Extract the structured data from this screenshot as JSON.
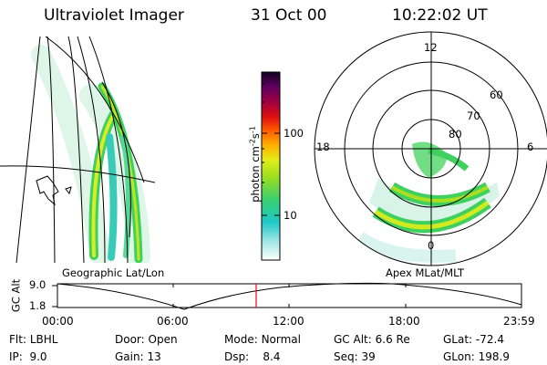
{
  "header": {
    "instrument": "Ultraviolet Imager",
    "date": "31 Oct 00",
    "time": "10:22:02 UT"
  },
  "colorbar": {
    "label": "photon cm",
    "label_sup1": "-2",
    "label_s": "s",
    "label_sup2": "-1",
    "ticks": [
      "100",
      "10"
    ]
  },
  "panels": {
    "geo_label": "Geographic Lat/Lon",
    "polar_label": "Apex MLat/MLT",
    "polar_mlt_labels": [
      "12",
      "18",
      "6",
      "0"
    ],
    "polar_lat_labels": [
      "60",
      "70",
      "80"
    ]
  },
  "altitude_plot": {
    "ylabel": "GC Alt",
    "yticks": [
      "9.0",
      "1.8"
    ],
    "xticks": [
      "00:00",
      "06:00",
      "12:00",
      "18:00",
      "23:59"
    ],
    "marker_time": "10:22"
  },
  "info": {
    "flt": {
      "label": "Flt:",
      "value": "LBHL"
    },
    "ip": {
      "label": "IP:",
      "value": "9.0"
    },
    "door": {
      "label": "Door:",
      "value": "Open"
    },
    "gain": {
      "label": "Gain:",
      "value": "13"
    },
    "mode": {
      "label": "Mode:",
      "value": "Normal"
    },
    "dsp": {
      "label": "Dsp:",
      "value": "8.4"
    },
    "gcalt": {
      "label": "GC Alt:",
      "value": "6.6 Re"
    },
    "seq": {
      "label": "Seq:",
      "value": "39"
    },
    "glat": {
      "label": "GLat:",
      "value": "-72.4"
    },
    "glon": {
      "label": "GLon:",
      "value": "198.9"
    }
  },
  "colors": {
    "marker": "#ff0000",
    "line": "#000000",
    "aurora_green": "#33cc33",
    "aurora_yellow": "#ccee22",
    "aurora_cyan": "#33ccbb"
  }
}
